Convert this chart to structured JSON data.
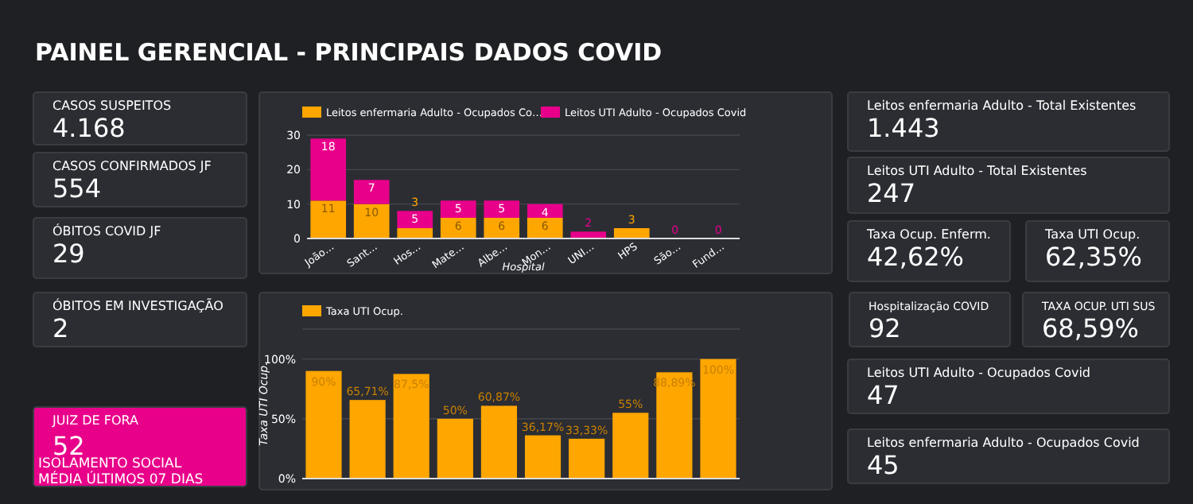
{
  "chart_data": [
    {
      "type": "other",
      "title": "PAINEL GERENCIAL - PRINCIPAIS DADOS COVID",
      "annotations": [
        "CASOS SUSPEITOS",
        "4.168",
        "CASOS CONFIRMADOS JF",
        "554",
        "ÓBITOS COVID JF",
        "29",
        "ÓBITOS EM INVESTIGAÇÃO",
        "2",
        "JUIZ DE FORA",
        "52",
        "ISOLAMENTO SOCIAL",
        "MÉDIA ÚLTIMOS 07 DIAS",
        "Leitos enfermaria Adulto - Total Existentes",
        "1.443",
        "Leitos UTI Adulto - Total Existentes",
        "247",
        "Taxa Ocup. Enferm.",
        "42,62%",
        "Taxa UTI Ocup.",
        "62,35%",
        "Hospitalização COVID",
        "92",
        "TAXA OCUP. UTI SUS",
        "68,59%",
        "Leitos UTI Adulto - Ocupados Covid",
        "47",
        "Leitos enfermaria Adulto - Ocupados Covid",
        "45"
      ]
    },
    {
      "type": "bar",
      "stacked": true,
      "xlabel": "Hospital",
      "categories": [
        "João…",
        "Sant…",
        "Hos…",
        "Mate…",
        "Albe…",
        "Mon…",
        "UNI…",
        "HPS",
        "São…",
        "Fund…"
      ],
      "ylim": [
        0,
        30
      ],
      "yticks": [
        0,
        10,
        20,
        30
      ],
      "grid": "y",
      "legend": "top",
      "series": [
        {
          "name": "Leitos enfermaria Adulto - Ocupados Co…",
          "color": "#ffa600",
          "values": [
            11,
            10,
            3,
            6,
            6,
            6,
            0,
            3,
            0,
            0
          ],
          "value_labels": [
            "11",
            "10",
            "3",
            "6",
            "6",
            "6",
            null,
            "3",
            null,
            null
          ]
        },
        {
          "name": "Leitos UTI Adulto - Ocupados Covid",
          "color": "#e8008a",
          "values": [
            18,
            7,
            5,
            5,
            5,
            4,
            2,
            0,
            0,
            0
          ],
          "value_labels": [
            "18",
            "7",
            "5",
            "5",
            "5",
            "4",
            "2",
            null,
            "0",
            "0"
          ]
        }
      ]
    },
    {
      "type": "bar",
      "ylabel": "Taxa UTI Ocup.",
      "categories": [
        null,
        null,
        null,
        null,
        null,
        null,
        null,
        null,
        null,
        null
      ],
      "ylim": [
        0,
        125
      ],
      "yticks": [
        {
          "value": 0,
          "label": "0%"
        },
        {
          "value": 50,
          "label": "50%"
        },
        {
          "value": 100,
          "label": "100%"
        },
        {
          "value": 125,
          "label": null
        }
      ],
      "grid": "y",
      "legend": "top",
      "series": [
        {
          "name": "Taxa UTI Ocup.",
          "color": "#ffa600",
          "values": [
            90,
            65.71,
            87.5,
            50,
            60.87,
            36.17,
            33.33,
            55,
            88.89,
            100
          ],
          "value_labels": [
            "90%",
            "65,71%",
            "87,5%",
            "50%",
            "60,87%",
            "36,17%",
            "33,33%",
            "55%",
            "88,89%",
            "100%"
          ]
        }
      ]
    }
  ]
}
